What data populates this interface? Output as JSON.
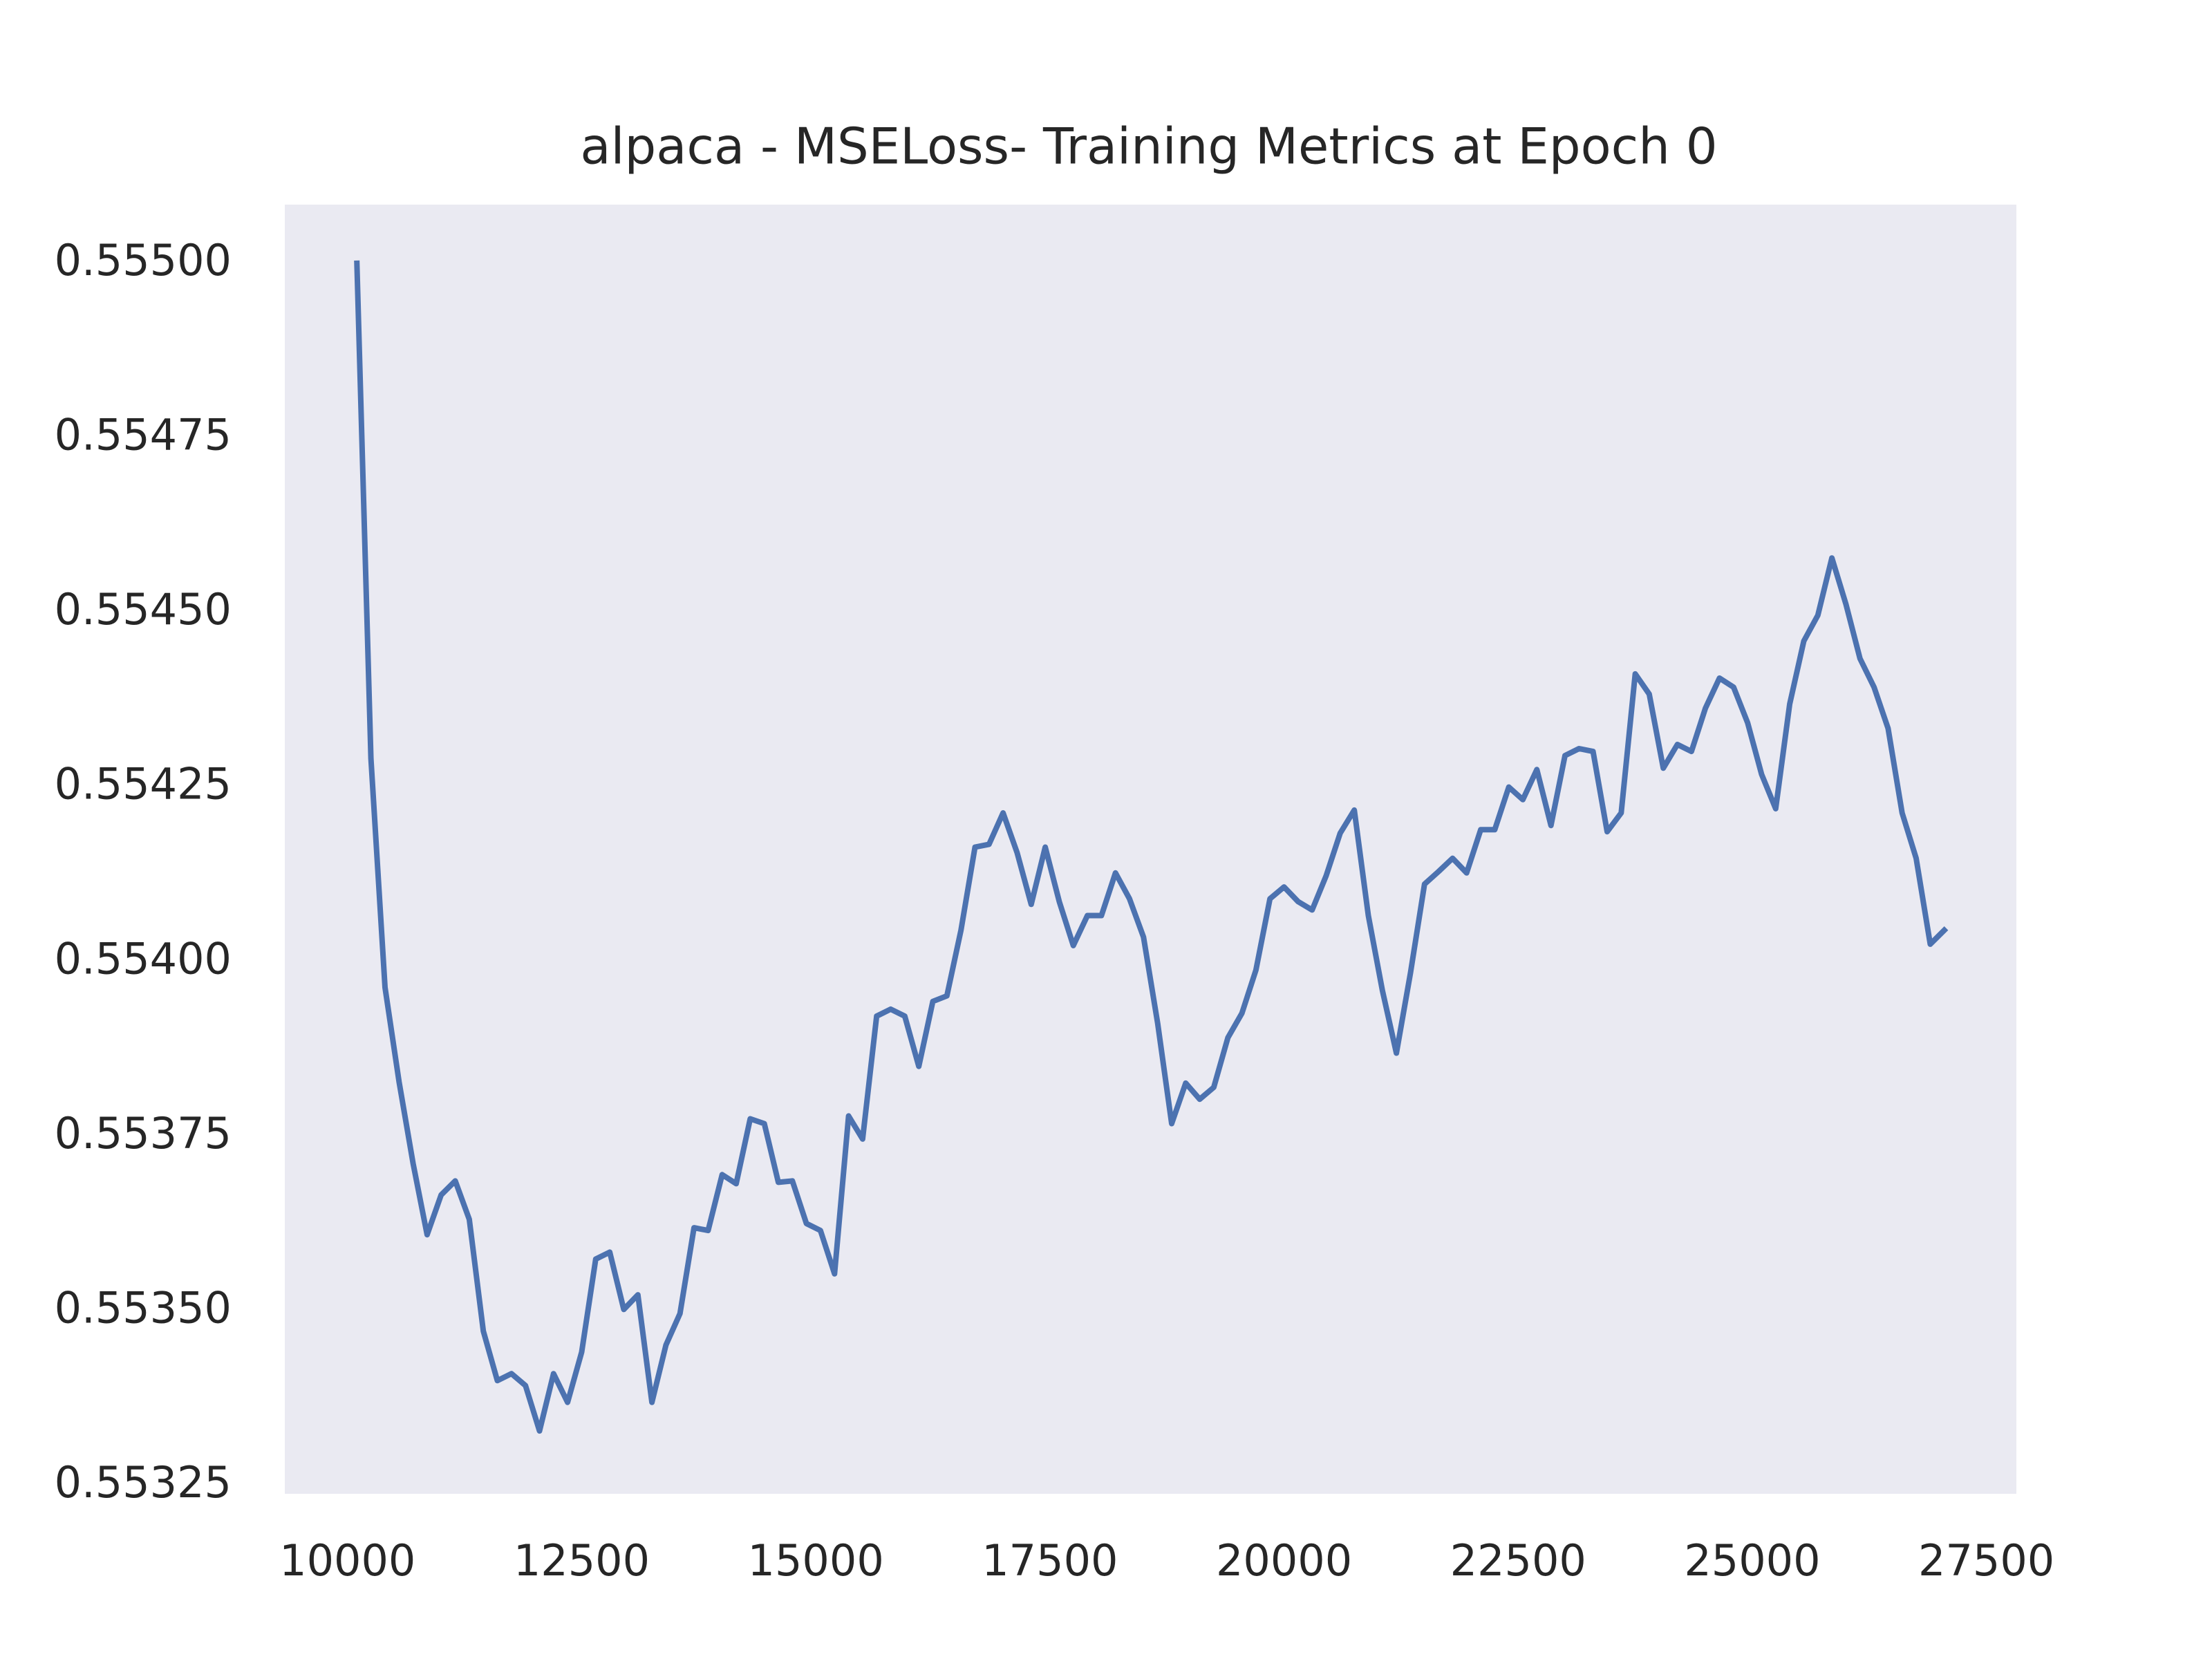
{
  "chart_data": {
    "type": "line",
    "title": "alpaca - MSELoss- Training Metrics at Epoch 0",
    "x": [
      10100,
      10250,
      10400,
      10550,
      10700,
      10850,
      11000,
      11150,
      11300,
      11450,
      11600,
      11750,
      11900,
      12050,
      12200,
      12350,
      12500,
      12650,
      12800,
      12950,
      13100,
      13250,
      13400,
      13550,
      13700,
      13850,
      14000,
      14150,
      14300,
      14450,
      14600,
      14750,
      14900,
      15050,
      15200,
      15350,
      15500,
      15650,
      15800,
      15950,
      16100,
      16250,
      16400,
      16550,
      16700,
      16850,
      17000,
      17150,
      17300,
      17450,
      17600,
      17750,
      17900,
      18050,
      18200,
      18350,
      18500,
      18650,
      18800,
      18950,
      19100,
      19250,
      19400,
      19550,
      19700,
      19850,
      20000,
      20150,
      20300,
      20450,
      20600,
      20750,
      20900,
      21050,
      21200,
      21350,
      21500,
      21650,
      21800,
      21950,
      22100,
      22250,
      22400,
      22550,
      22700,
      22850,
      23000,
      23150,
      23300,
      23450,
      23600,
      23750,
      23900,
      24050,
      24200,
      24350,
      24500,
      24650,
      24800,
      24950,
      25100,
      25250,
      25400,
      25550,
      25700,
      25850,
      26000,
      26150,
      26300,
      26450,
      26600,
      26750,
      26900,
      27050
    ],
    "values": [
      0.555,
      0.554291,
      0.553963,
      0.553828,
      0.553711,
      0.553609,
      0.553666,
      0.553686,
      0.553631,
      0.553471,
      0.5534,
      0.55341,
      0.553393,
      0.553328,
      0.55341,
      0.553369,
      0.553441,
      0.553574,
      0.553584,
      0.553502,
      0.553523,
      0.553369,
      0.553451,
      0.553496,
      0.553619,
      0.553615,
      0.553695,
      0.553682,
      0.553775,
      0.553768,
      0.553684,
      0.553686,
      0.553625,
      0.553615,
      0.553553,
      0.553779,
      0.553746,
      0.553922,
      0.553932,
      0.553922,
      0.55385,
      0.553943,
      0.553951,
      0.554045,
      0.554164,
      0.554168,
      0.554213,
      0.554156,
      0.554082,
      0.554164,
      0.554086,
      0.554023,
      0.554066,
      0.554066,
      0.554127,
      0.55409,
      0.554035,
      0.553912,
      0.553768,
      0.553826,
      0.553803,
      0.55382,
      0.553891,
      0.553926,
      0.553988,
      0.55409,
      0.554107,
      0.554086,
      0.554074,
      0.554123,
      0.554184,
      0.554217,
      0.554066,
      0.553959,
      0.553869,
      0.553984,
      0.554111,
      0.554129,
      0.554148,
      0.554127,
      0.554189,
      0.554189,
      0.55425,
      0.554232,
      0.554275,
      0.554195,
      0.554295,
      0.554305,
      0.554301,
      0.554186,
      0.554213,
      0.554412,
      0.554383,
      0.554277,
      0.554311,
      0.554301,
      0.554363,
      0.554406,
      0.554393,
      0.554342,
      0.554268,
      0.554219,
      0.554369,
      0.554459,
      0.554496,
      0.554578,
      0.554512,
      0.554434,
      0.554393,
      0.554334,
      0.554213,
      0.554148,
      0.554025,
      0.554045
    ],
    "color": "#4c72b0",
    "background": "#eaeaf2",
    "grid": false,
    "xlim": [
      9330,
      27820
    ],
    "xticks": [
      10000,
      12500,
      15000,
      17500,
      20000,
      22500,
      25000,
      27500
    ],
    "ylim": [
      0.553238,
      0.555084
    ],
    "yticks": [
      {
        "value": 0.55325,
        "label": "0.55325"
      },
      {
        "value": 0.5535,
        "label": "0.55350"
      },
      {
        "value": 0.55375,
        "label": "0.55375"
      },
      {
        "value": 0.554,
        "label": "0.55400"
      },
      {
        "value": 0.55425,
        "label": "0.55425"
      },
      {
        "value": 0.5545,
        "label": "0.55450"
      },
      {
        "value": 0.55475,
        "label": "0.55475"
      },
      {
        "value": 0.555,
        "label": "0.55500"
      }
    ]
  }
}
